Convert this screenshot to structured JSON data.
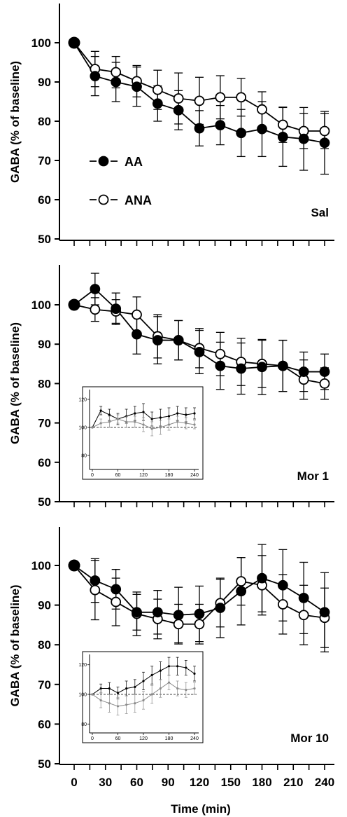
{
  "chart_data": [
    {
      "type": "line",
      "panel_label": "Sal",
      "ylabel": "GABA (% of baseline)",
      "xlabel": "",
      "ylim": [
        50,
        110
      ],
      "yticks": [
        50,
        60,
        70,
        80,
        90,
        100
      ],
      "xlim": [
        -10,
        245
      ],
      "xticks": [
        0,
        30,
        60,
        90,
        120,
        150,
        180,
        210,
        240
      ],
      "x": [
        0,
        20,
        40,
        60,
        80,
        100,
        120,
        140,
        160,
        180,
        200,
        220,
        240
      ],
      "series": [
        {
          "name": "AA",
          "marker": "filled",
          "values": [
            100,
            91.5,
            90,
            88.8,
            84.5,
            82.8,
            78.2,
            79,
            77,
            78,
            76,
            75.5,
            74.5
          ],
          "errors": [
            0,
            5,
            5,
            5,
            4.5,
            5,
            4.5,
            5,
            6,
            7,
            7.5,
            8,
            8
          ]
        },
        {
          "name": "ANA",
          "marker": "open",
          "values": [
            100,
            93.3,
            92.5,
            90.2,
            88,
            85.8,
            85.2,
            86.1,
            86.1,
            83,
            79.1,
            77.5,
            77.5
          ],
          "errors": [
            0,
            4.5,
            4,
            4,
            5,
            6.5,
            6,
            5.5,
            4.8,
            4.5,
            4.5,
            4.5,
            4.5
          ]
        }
      ],
      "legend": {
        "position": "left-middle",
        "entries": [
          "AA",
          "ANA"
        ]
      }
    },
    {
      "type": "line",
      "panel_label": "Mor 1",
      "ylabel": "GABA (% of baseline)",
      "xlabel": "",
      "ylim": [
        50,
        110
      ],
      "yticks": [
        50,
        60,
        70,
        80,
        90,
        100
      ],
      "xlim": [
        -10,
        245
      ],
      "xticks": [
        0,
        30,
        60,
        90,
        120,
        150,
        180,
        210,
        240
      ],
      "x": [
        0,
        20,
        40,
        60,
        80,
        100,
        120,
        140,
        160,
        180,
        200,
        220,
        240
      ],
      "series": [
        {
          "name": "AA",
          "marker": "filled",
          "values": [
            100,
            104,
            99,
            92.5,
            91,
            91,
            88,
            84.5,
            83.8,
            84.2,
            84.5,
            83,
            83
          ],
          "errors": [
            0,
            4,
            4,
            5,
            6,
            5,
            5.5,
            6,
            6.5,
            7,
            6.5,
            5,
            4.5
          ]
        },
        {
          "name": "ANA",
          "marker": "open",
          "values": [
            100,
            98.8,
            98.3,
            97.5,
            92,
            91,
            89,
            87.5,
            85.5,
            85,
            84.5,
            81,
            80
          ],
          "errors": [
            0,
            3,
            3,
            4.5,
            5.5,
            5,
            5,
            5.5,
            6,
            6,
            6.5,
            5,
            4
          ]
        }
      ],
      "inset": {
        "yticks": [
          80,
          100,
          120
        ],
        "xticks": [
          0,
          60,
          120,
          180,
          240
        ],
        "ylim": [
          70,
          126
        ],
        "xlim": [
          -5,
          248
        ],
        "reference_line": 100,
        "x": [
          0,
          20,
          40,
          60,
          80,
          100,
          120,
          140,
          160,
          180,
          200,
          220,
          240
        ],
        "series": [
          {
            "name": "AA",
            "values": [
              100,
              112,
              109,
              106,
              108,
              110,
              111,
              106,
              107,
              108,
              110,
              109,
              110
            ],
            "errors": [
              0,
              3,
              4,
              4,
              5,
              5,
              6,
              5,
              6,
              6,
              5,
              5,
              4
            ]
          },
          {
            "name": "ANA",
            "values": [
              100,
              103,
              104,
              106,
              104,
              104,
              102,
              99,
              100,
              102,
              104,
              103,
              102
            ],
            "errors": [
              0,
              3,
              4,
              3,
              4,
              4,
              5,
              5,
              5,
              4,
              4,
              4,
              3
            ]
          }
        ]
      }
    },
    {
      "type": "line",
      "panel_label": "Mor 10",
      "ylabel": "GABA (% of baseline)",
      "xlabel": "Time (min)",
      "ylim": [
        50,
        110
      ],
      "yticks": [
        50,
        60,
        70,
        80,
        90,
        100
      ],
      "xlim": [
        -10,
        245
      ],
      "xticks": [
        0,
        30,
        60,
        90,
        120,
        150,
        180,
        210,
        240
      ],
      "x": [
        0,
        20,
        40,
        60,
        80,
        100,
        120,
        140,
        160,
        180,
        200,
        220,
        240
      ],
      "series": [
        {
          "name": "AA",
          "marker": "filled",
          "values": [
            100,
            96.2,
            94,
            88.2,
            88.2,
            87.5,
            87.8,
            89.3,
            93.5,
            96.8,
            95,
            91.8,
            88.2
          ],
          "errors": [
            0,
            5.5,
            5,
            4.5,
            5.5,
            7,
            7,
            7.5,
            8.5,
            8.5,
            9,
            9,
            10
          ]
        },
        {
          "name": "ANA",
          "marker": "open",
          "values": [
            100,
            93.8,
            90.8,
            87.8,
            86.5,
            85.2,
            85.2,
            90.5,
            96,
            95,
            90.2,
            87.5,
            86.8
          ],
          "errors": [
            0,
            7.5,
            6,
            5.5,
            5,
            5,
            5,
            6,
            6,
            7.5,
            7.5,
            7.5,
            7.5
          ]
        }
      ],
      "inset": {
        "yticks": [
          80,
          100,
          120
        ],
        "xticks": [
          0,
          60,
          120,
          180,
          240
        ],
        "ylim": [
          74,
          126
        ],
        "xlim": [
          -5,
          248
        ],
        "reference_line": 100,
        "x": [
          0,
          20,
          40,
          60,
          80,
          100,
          120,
          140,
          160,
          180,
          200,
          220,
          240
        ],
        "series": [
          {
            "name": "AA",
            "values": [
              100,
              104,
              104,
              101,
              104,
              105,
              109,
              113,
              116,
              119,
              119,
              118,
              114
            ],
            "errors": [
              0,
              3,
              4,
              4,
              5,
              5,
              6,
              6,
              6,
              6,
              6,
              5,
              5
            ]
          },
          {
            "name": "ANA",
            "values": [
              100,
              96,
              94,
              92,
              93,
              94,
              96,
              100,
              104,
              108,
              104,
              103,
              104
            ],
            "errors": [
              0,
              5,
              6,
              6,
              6,
              6,
              6,
              6,
              6,
              5,
              5,
              5,
              4
            ]
          }
        ]
      }
    }
  ]
}
